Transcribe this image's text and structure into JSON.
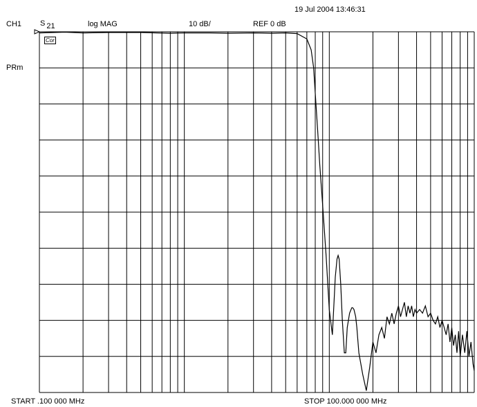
{
  "header": {
    "timestamp": "19 Jul 2004  13:46:31",
    "channel": "CH1",
    "parameter": "S",
    "parameter_sub": "21",
    "format": "log MAG",
    "scale": "10 dB/",
    "reference": "REF 0 dB",
    "cal_badge": "Cor",
    "side_label": "PRm"
  },
  "footer": {
    "start": "START   .100 000 MHz",
    "stop": "STOP  100.000 000 MHz"
  },
  "colors": {
    "trace": "#000000",
    "grid": "#000000",
    "background": "#ffffff"
  },
  "chart_data": {
    "type": "line",
    "x_scale": "log",
    "x_range_mhz": [
      0.1,
      100
    ],
    "y_range_db": [
      -100,
      0
    ],
    "y_divisions": 10,
    "grid": true,
    "series": [
      {
        "x_mhz": [
          0.1,
          0.15,
          0.2,
          0.3,
          0.5,
          0.8,
          1.0,
          1.5,
          2.0,
          3.0,
          4.0,
          5.0,
          6.0,
          7.0,
          7.5,
          7.8,
          8.0,
          8.3,
          8.6,
          9.0,
          9.5,
          10.0,
          10.5,
          11.0,
          11.3,
          11.5,
          11.7,
          12.0,
          12.3,
          12.7,
          13.0,
          13.3,
          13.8,
          14.3,
          14.5,
          14.8,
          15.2,
          15.5,
          16.0,
          17.0,
          18.0,
          19.0,
          20.0,
          21.0,
          22.0,
          23.0,
          24.0,
          25.0,
          26.0,
          27.0,
          28.0,
          29.0,
          30.0,
          31.0,
          32.0,
          33.0,
          34.0,
          35.0,
          36.0,
          37.0,
          38.0,
          39.0,
          40.0,
          42.0,
          44.0,
          46.0,
          48.0,
          50.0,
          52.0,
          54.0,
          56.0,
          58.0,
          60.0,
          62.0,
          64.0,
          66.0,
          68.0,
          70.0,
          72.0,
          74.0,
          76.0,
          78.0,
          80.0,
          83.0,
          86.0,
          89.0,
          92.0,
          95.0,
          98.0,
          100.0
        ],
        "y_db": [
          -0.3,
          -0.1,
          -0.3,
          -0.2,
          -0.2,
          -0.4,
          -0.3,
          -0.3,
          -0.4,
          -0.3,
          -0.4,
          -0.3,
          -0.5,
          -2.0,
          -5.0,
          -10.0,
          -17.0,
          -27.0,
          -37.0,
          -48.0,
          -62.0,
          -77.0,
          -84.0,
          -68.0,
          -63.0,
          -62.0,
          -63.0,
          -70.0,
          -80.0,
          -89.0,
          -89.0,
          -82.0,
          -78.0,
          -76.5,
          -76.5,
          -77.0,
          -79.0,
          -82.0,
          -89.0,
          -95.0,
          -99.5,
          -93.0,
          -86.0,
          -89.0,
          -84.0,
          -82.0,
          -85.0,
          -79.0,
          -81.0,
          -78.0,
          -81.0,
          -78.0,
          -76.0,
          -79.0,
          -77.0,
          -75.0,
          -79.0,
          -76.0,
          -78.0,
          -76.0,
          -79.0,
          -77.0,
          -78.0,
          -77.0,
          -78.0,
          -76.0,
          -79.0,
          -78.0,
          -80.0,
          -81.0,
          -79.0,
          -82.0,
          -80.0,
          -82.0,
          -84.0,
          -81.0,
          -86.0,
          -82.0,
          -87.0,
          -84.0,
          -89.0,
          -83.0,
          -90.0,
          -84.0,
          -89.0,
          -83.0,
          -90.0,
          -86.0,
          -92.0,
          -94.0
        ]
      }
    ]
  }
}
